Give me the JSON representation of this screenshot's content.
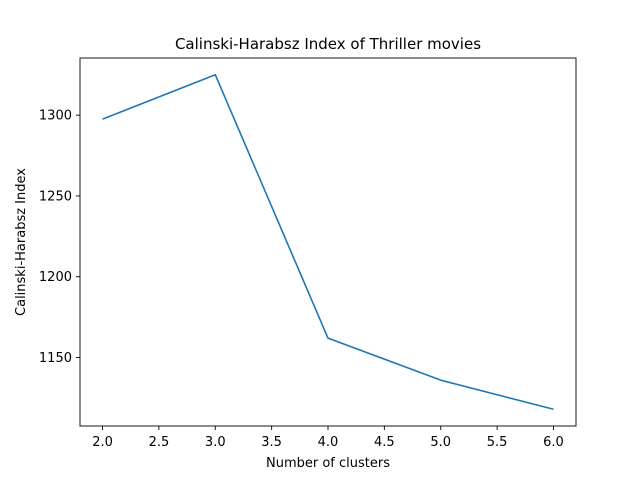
{
  "chart_data": {
    "type": "line",
    "title": "Calinski-Harabsz Index of Thriller movies",
    "xlabel": "Number of clusters",
    "ylabel": "Calinski-Harabsz Index",
    "x": [
      2,
      3,
      4,
      5,
      6
    ],
    "series": [
      {
        "values": [
          1297.5,
          1325,
          1162,
          1136,
          1118
        ],
        "color": "#1f77b4"
      }
    ],
    "xticks": [
      2.0,
      2.5,
      3.0,
      3.5,
      4.0,
      4.5,
      5.0,
      5.5,
      6.0
    ],
    "xtick_labels": [
      "2.0",
      "2.5",
      "3.0",
      "3.5",
      "4.0",
      "4.5",
      "5.0",
      "5.5",
      "6.0"
    ],
    "yticks": [
      1150,
      1200,
      1250,
      1300
    ],
    "ytick_labels": [
      "1150",
      "1200",
      "1250",
      "1300"
    ],
    "xlim": [
      1.8,
      6.2
    ],
    "ylim": [
      1107.65,
      1335.35
    ],
    "grid": false,
    "legend": false
  }
}
